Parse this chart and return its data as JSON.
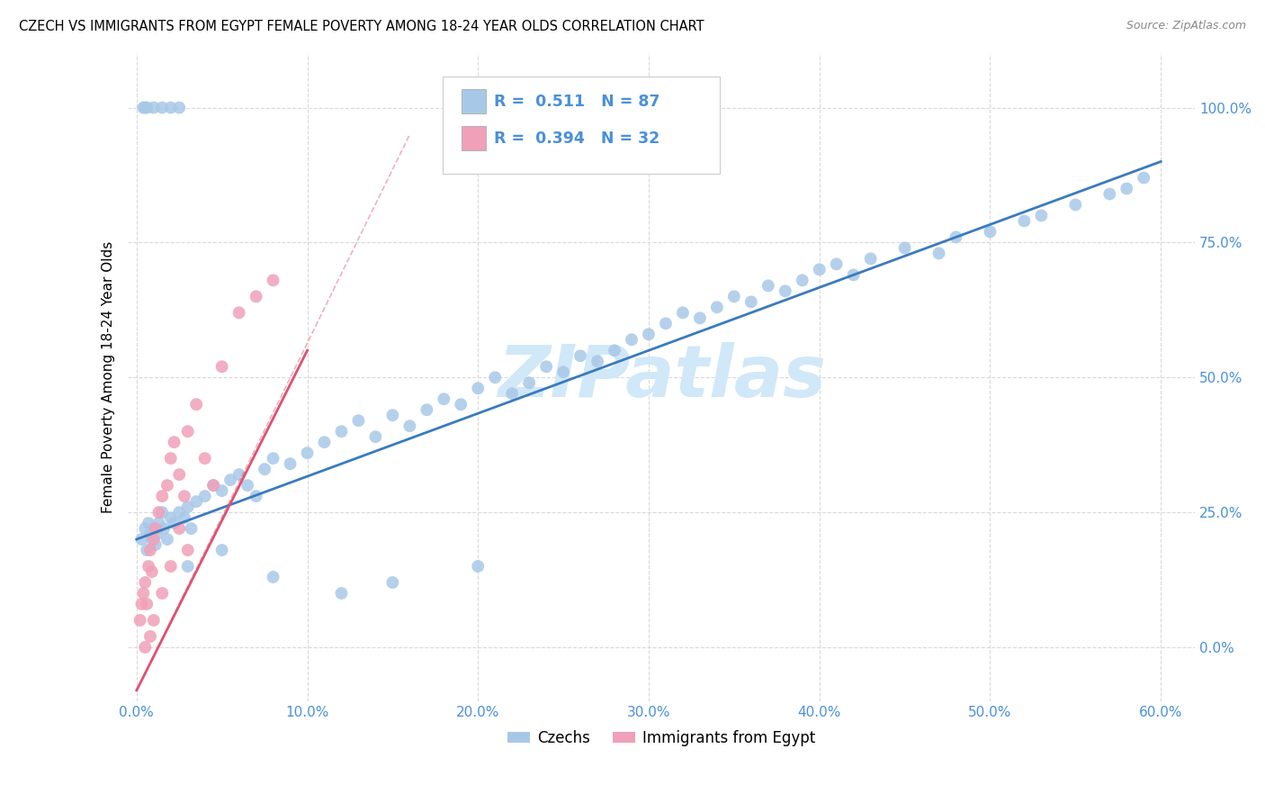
{
  "title": "CZECH VS IMMIGRANTS FROM EGYPT FEMALE POVERTY AMONG 18-24 YEAR OLDS CORRELATION CHART",
  "source": "Source: ZipAtlas.com",
  "ylabel": "Female Poverty Among 18-24 Year Olds",
  "xlim": [
    -0.5,
    62
  ],
  "ylim": [
    -10,
    110
  ],
  "xticks": [
    0,
    10,
    20,
    30,
    40,
    50,
    60
  ],
  "yticks": [
    0,
    25,
    50,
    75,
    100
  ],
  "xticklabels": [
    "0.0%",
    "10.0%",
    "20.0%",
    "30.0%",
    "40.0%",
    "50.0%",
    "60.0%"
  ],
  "yticklabels": [
    "0.0%",
    "25.0%",
    "50.0%",
    "75.0%",
    "100.0%"
  ],
  "czech_R": "0.511",
  "czech_N": "87",
  "egypt_R": "0.394",
  "egypt_N": "32",
  "blue_scatter_color": "#a8c8e8",
  "pink_scatter_color": "#f0a0b8",
  "blue_line_color": "#3a7abf",
  "pink_line_color": "#e05070",
  "tick_color": "#4a90d9",
  "watermark_color": "#d0e8f8",
  "grid_color": "#d0d0d0",
  "background_color": "#ffffff",
  "legend_label1": "Czechs",
  "legend_label2": "Immigrants from Egypt",
  "czech_x": [
    0.3,
    0.5,
    0.6,
    0.7,
    0.8,
    0.9,
    1.0,
    1.1,
    1.2,
    1.3,
    1.5,
    1.6,
    1.8,
    2.0,
    2.2,
    2.5,
    2.8,
    3.0,
    3.2,
    3.5,
    4.0,
    4.5,
    5.0,
    5.5,
    6.0,
    6.5,
    7.0,
    7.5,
    8.0,
    9.0,
    10.0,
    11.0,
    12.0,
    13.0,
    14.0,
    15.0,
    16.0,
    17.0,
    18.0,
    19.0,
    20.0,
    21.0,
    22.0,
    23.0,
    24.0,
    25.0,
    26.0,
    27.0,
    28.0,
    29.0,
    30.0,
    31.0,
    32.0,
    33.0,
    34.0,
    35.0,
    36.0,
    37.0,
    38.0,
    39.0,
    40.0,
    41.0,
    42.0,
    43.0,
    45.0,
    47.0,
    48.0,
    50.0,
    52.0,
    53.0,
    55.0,
    57.0,
    58.0,
    59.0,
    0.4,
    0.5,
    0.6,
    1.0,
    1.5,
    2.0,
    2.5,
    3.0,
    5.0,
    8.0,
    12.0,
    15.0,
    20.0
  ],
  "czech_y": [
    20,
    22,
    18,
    23,
    21,
    20,
    22,
    19,
    21,
    23,
    25,
    22,
    20,
    24,
    23,
    25,
    24,
    26,
    22,
    27,
    28,
    30,
    29,
    31,
    32,
    30,
    28,
    33,
    35,
    34,
    36,
    38,
    40,
    42,
    39,
    43,
    41,
    44,
    46,
    45,
    48,
    50,
    47,
    49,
    52,
    51,
    54,
    53,
    55,
    57,
    58,
    60,
    62,
    61,
    63,
    65,
    64,
    67,
    66,
    68,
    70,
    71,
    69,
    72,
    74,
    73,
    76,
    77,
    79,
    80,
    82,
    84,
    85,
    87,
    100,
    100,
    100,
    100,
    100,
    100,
    100,
    15,
    18,
    13,
    10,
    12,
    15
  ],
  "egypt_x": [
    0.2,
    0.3,
    0.4,
    0.5,
    0.6,
    0.7,
    0.8,
    0.9,
    1.0,
    1.1,
    1.3,
    1.5,
    1.8,
    2.0,
    2.2,
    2.5,
    2.8,
    3.0,
    3.5,
    4.0,
    5.0,
    6.0,
    7.0,
    8.0,
    0.5,
    0.8,
    1.0,
    1.5,
    2.0,
    2.5,
    3.0,
    4.5
  ],
  "egypt_y": [
    5,
    8,
    10,
    12,
    8,
    15,
    18,
    14,
    20,
    22,
    25,
    28,
    30,
    35,
    38,
    32,
    28,
    40,
    45,
    35,
    52,
    62,
    65,
    68,
    0,
    2,
    5,
    10,
    15,
    22,
    18,
    30
  ],
  "blue_line_x0": 0,
  "blue_line_y0": 20,
  "blue_line_x1": 60,
  "blue_line_y1": 90,
  "pink_line_x0": 0,
  "pink_line_y0": -8,
  "pink_line_x1": 10,
  "pink_line_y1": 55,
  "pink_dash_x0": 0,
  "pink_dash_y0": -8,
  "pink_dash_x1": 16,
  "pink_dash_y1": 95
}
